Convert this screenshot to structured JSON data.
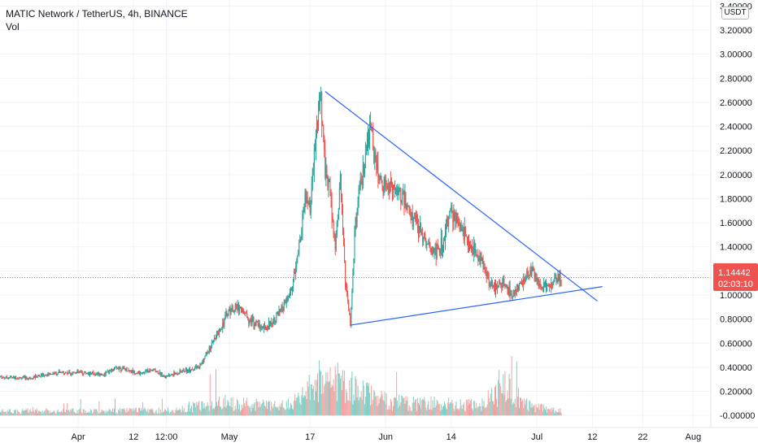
{
  "header": {
    "symbol": "MATIC Network / TetherUS, 4h, BINANCE",
    "volume_label": "Vol",
    "currency": "USDT"
  },
  "colors": {
    "up": "#26a69a",
    "down": "#ef5350",
    "vol_up": "#7fcfc5",
    "vol_down": "#f5a3a1",
    "trendline": "#2962ff",
    "price_line": "#ef5350"
  },
  "current_price": {
    "value": "1.14442",
    "countdown": "02:03:10"
  },
  "chart_data": {
    "type": "candlestick",
    "title": "MATIC Network / TetherUS, 4h, BINANCE",
    "y_unit": "USDT",
    "ylim": [
      -0.1,
      3.45
    ],
    "y_ticks": [
      "3.40000",
      "3.20000",
      "3.00000",
      "2.80000",
      "2.60000",
      "2.40000",
      "2.20000",
      "2.00000",
      "1.80000",
      "1.60000",
      "1.40000",
      "1.20000",
      "1.00000",
      "0.80000",
      "0.60000",
      "0.40000",
      "0.20000",
      "-0.00000"
    ],
    "y_tick_values": [
      3.4,
      3.2,
      3.0,
      2.8,
      2.6,
      2.4,
      2.2,
      2.0,
      1.8,
      1.6,
      1.4,
      1.2,
      1.0,
      0.8,
      0.6,
      0.4,
      0.2,
      0.0
    ],
    "x_ticks": [
      "Apr",
      "12",
      "12:00",
      "May",
      "17",
      "Jun",
      "14",
      "Jul",
      "12",
      "22",
      "Aug"
    ],
    "x_tick_days": [
      0,
      11,
      17.5,
      30,
      46,
      61,
      74,
      91,
      102,
      112,
      122
    ],
    "xlim": [
      -15.5,
      125.5
    ],
    "price_path": [
      [
        -15.5,
        0.32
      ],
      [
        -10,
        0.31
      ],
      [
        -5,
        0.35
      ],
      [
        0,
        0.36
      ],
      [
        5,
        0.34
      ],
      [
        8,
        0.4
      ],
      [
        12,
        0.35
      ],
      [
        15,
        0.38
      ],
      [
        17.5,
        0.32
      ],
      [
        20,
        0.36
      ],
      [
        24,
        0.4
      ],
      [
        27,
        0.62
      ],
      [
        30,
        0.88
      ],
      [
        32,
        0.9
      ],
      [
        34,
        0.8
      ],
      [
        37,
        0.72
      ],
      [
        40,
        0.85
      ],
      [
        42,
        1.0
      ],
      [
        43,
        1.18
      ],
      [
        44,
        1.45
      ],
      [
        45,
        1.8
      ],
      [
        46,
        1.72
      ],
      [
        47,
        2.2
      ],
      [
        48,
        2.68
      ],
      [
        49,
        2.05
      ],
      [
        50,
        1.85
      ],
      [
        51,
        1.4
      ],
      [
        52,
        1.95
      ],
      [
        53,
        1.1
      ],
      [
        54,
        0.78
      ],
      [
        55,
        1.6
      ],
      [
        56,
        1.9
      ],
      [
        57,
        2.1
      ],
      [
        58,
        2.42
      ],
      [
        59,
        2.1
      ],
      [
        60,
        1.95
      ],
      [
        62,
        1.9
      ],
      [
        64,
        1.85
      ],
      [
        66,
        1.65
      ],
      [
        68,
        1.55
      ],
      [
        70,
        1.35
      ],
      [
        72,
        1.4
      ],
      [
        74,
        1.7
      ],
      [
        76,
        1.55
      ],
      [
        78,
        1.4
      ],
      [
        80,
        1.3
      ],
      [
        82,
        1.05
      ],
      [
        84,
        1.1
      ],
      [
        86,
        1.0
      ],
      [
        88,
        1.1
      ],
      [
        90,
        1.2
      ],
      [
        92,
        1.05
      ],
      [
        94,
        1.1
      ],
      [
        96,
        1.14
      ]
    ],
    "volume_profile": [
      [
        -15.5,
        0.05
      ],
      [
        20,
        0.06
      ],
      [
        27,
        0.16
      ],
      [
        30,
        0.15
      ],
      [
        40,
        0.1
      ],
      [
        44,
        0.18
      ],
      [
        48,
        0.44
      ],
      [
        53,
        0.35
      ],
      [
        56,
        0.3
      ],
      [
        62,
        0.15
      ],
      [
        70,
        0.14
      ],
      [
        80,
        0.12
      ],
      [
        85,
        0.36
      ],
      [
        90,
        0.1
      ],
      [
        96,
        0.05
      ]
    ],
    "trendlines": [
      {
        "from": [
          49,
          2.69
        ],
        "to": [
          103,
          0.95
        ]
      },
      {
        "from": [
          54,
          0.75
        ],
        "to": [
          104,
          1.07
        ]
      }
    ],
    "current_price": 1.14442
  }
}
